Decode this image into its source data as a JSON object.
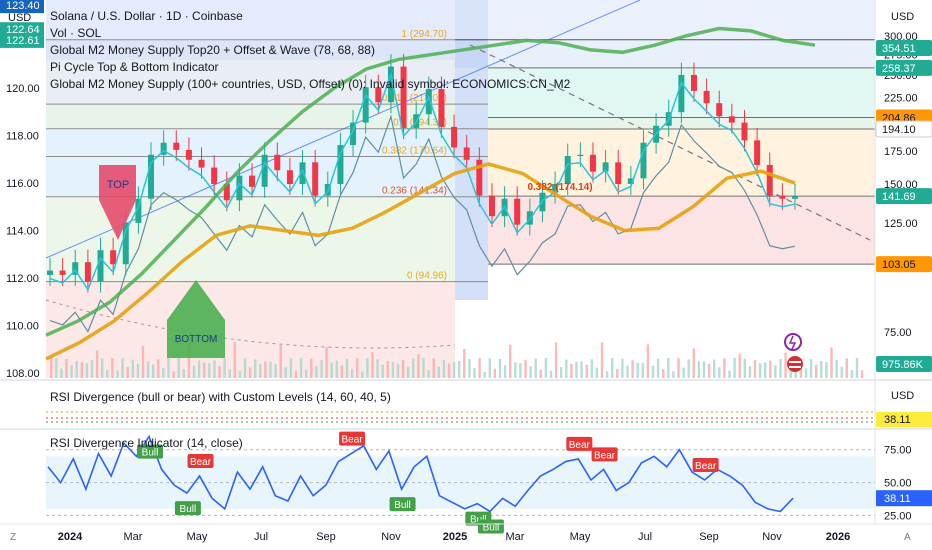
{
  "header": {
    "symbol_line": "Solana / U.S. Dollar · 1D · Coinbase",
    "indicators": [
      "Vol · SOL",
      "Global M2 Money Supply Top20 + Offset & Wave (78, 68, 88)",
      "Pi Cycle Top & Bottom Indicator",
      "Global M2 Money Supply (100+ countries, USD, Offset) (0): Invalid symbol: ECONOMICS:CN_M2"
    ],
    "left_currency": "USD",
    "right_currency": "USD",
    "left_badges": [
      "123.40",
      "122.64",
      "122.61"
    ]
  },
  "colors": {
    "green": "#22ab94",
    "red": "#f23645",
    "ma_green": "#4caf50",
    "ma_orange": "#e6a10f",
    "teal": "#26c6da",
    "rsi_blue": "#2962ff",
    "bear": "#e53935",
    "bull": "#43a047"
  },
  "chart_data": [
    {
      "type": "line",
      "title": "Solana / U.S. Dollar · 1D · Coinbase",
      "x_axis_labels": [
        "2024",
        "Mar",
        "May",
        "Jul",
        "Sep",
        "Nov",
        "2025",
        "Mar",
        "May",
        "Jul",
        "Sep",
        "Nov",
        "2026"
      ],
      "left_axis": {
        "ticks": [
          108.0,
          110.0,
          112.0,
          114.0,
          116.0,
          118.0,
          120.0,
          122.0
        ],
        "ylim": [
          107.8,
          123.7
        ]
      },
      "right_axis": {
        "ticks": [
          75.0,
          125.0,
          150.0,
          175.0,
          225.0,
          250.0,
          275.0,
          300.0
        ],
        "scale": "log",
        "badges": [
          {
            "value": "354.51",
            "color": "#22ab94"
          },
          {
            "value": "258.37",
            "color": "#22ab94"
          },
          {
            "value": "204.86",
            "color": "#ff9800"
          },
          {
            "value": "194.10",
            "color": "#ffffff"
          },
          {
            "value": "141.69",
            "color": "#22ab94"
          },
          {
            "value": "103.05",
            "color": "#ff9800"
          },
          {
            "value": "975.86K",
            "color": "#22ab94"
          }
        ]
      },
      "fib_levels": [
        {
          "ratio": "1 (294.70)",
          "price": 294.7
        },
        {
          "ratio": "0.618 (218.02)",
          "price": 218.02
        },
        {
          "ratio": "0.5 (194.33)",
          "price": 194.33
        },
        {
          "ratio": "0.382 (170.64)",
          "price": 170.64
        },
        {
          "ratio": "0.236 (141.34)",
          "price": 141.34
        },
        {
          "ratio": "0 (94.96)",
          "price": 94.96
        }
      ],
      "annotations": [
        "0.382 (174.14)",
        "TOP",
        "BOTTOM"
      ],
      "price_close": [
        100,
        98,
        104,
        95,
        110,
        103,
        125,
        140,
        172,
        182,
        176,
        168,
        162,
        150,
        139,
        156,
        148,
        172,
        160,
        150,
        166,
        142,
        150,
        180,
        200,
        236,
        220,
        260,
        195,
        208,
        234,
        196,
        178,
        168,
        142,
        129,
        140,
        124,
        132,
        144,
        150,
        171,
        172,
        159,
        166,
        150,
        154,
        182,
        197,
        210,
        250,
        232,
        219,
        206,
        200,
        184,
        164,
        142,
        140,
        141.69
      ],
      "series": [
        {
          "name": "Global M2 Money Supply Top20 + Offset & Wave",
          "color": "#4caf50"
        },
        {
          "name": "Pi Cycle Top & Bottom Indicator",
          "color": "#e6a10f"
        }
      ]
    },
    {
      "type": "line",
      "title": "RSI Divergence (bull or bear) with Custom Levels (14, 60, 40, 5)",
      "value_label": "38.11"
    },
    {
      "type": "line",
      "title": "RSI Divergence Indicator (14, close)",
      "ylim": [
        20,
        90
      ],
      "ticks": [
        25.0,
        50.0,
        75.0
      ],
      "last_value": "38.11",
      "values": [
        62,
        50,
        68,
        45,
        72,
        55,
        80,
        70,
        85,
        60,
        48,
        42,
        55,
        38,
        30,
        58,
        45,
        62,
        40,
        36,
        55,
        40,
        48,
        66,
        72,
        78,
        60,
        74,
        45,
        62,
        70,
        40,
        35,
        30,
        34,
        28,
        38,
        32,
        44,
        55,
        60,
        66,
        68,
        52,
        60,
        44,
        50,
        65,
        70,
        62,
        75,
        58,
        52,
        60,
        55,
        48,
        35,
        30,
        28,
        38.11
      ],
      "signals": [
        {
          "label": "Bear",
          "index": 24
        },
        {
          "label": "Bear",
          "index": 12
        },
        {
          "label": "Bull",
          "index": 8
        },
        {
          "label": "Bull",
          "index": 11
        },
        {
          "label": "Bull",
          "index": 28
        },
        {
          "label": "Bull",
          "index": 34
        },
        {
          "label": "Bull",
          "index": 35
        },
        {
          "label": "Bear",
          "index": 42
        },
        {
          "label": "Bear",
          "index": 44
        },
        {
          "label": "Bear",
          "index": 52
        }
      ]
    }
  ]
}
